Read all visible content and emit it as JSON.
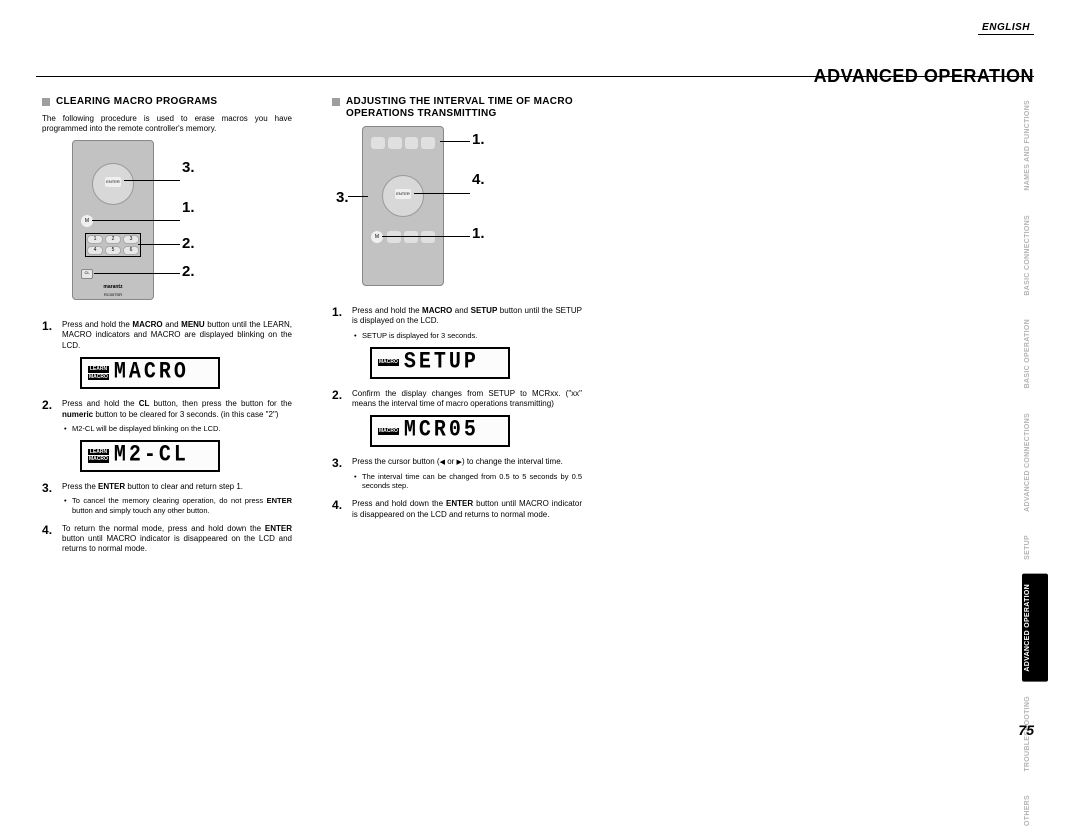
{
  "header": {
    "language": "ENGLISH",
    "title": "ADVANCED OPERATION"
  },
  "section1": {
    "title": "CLEARING MACRO PROGRAMS",
    "intro": "The following procedure is used to erase macros you have programmed into the remote controller's memory.",
    "remote_callouts": [
      "3.",
      "1.",
      "2.",
      "2."
    ],
    "remote_brand": "marantz",
    "remote_model": "RC007SR",
    "lcd1": {
      "indicators": [
        "LEARN",
        "MACRO"
      ],
      "text": "MACRO"
    },
    "lcd2": {
      "indicators": [
        "LEARN",
        "MACRO"
      ],
      "text": "M2-CL"
    },
    "steps": [
      {
        "text_parts": [
          "Press and hold the ",
          "MACRO",
          " and ",
          "MENU",
          " button until the LEARN, MACRO indicators and MACRO are displayed blinking on the LCD."
        ]
      },
      {
        "text_parts": [
          "Press and hold the ",
          "CL",
          " button, then press the button for the ",
          "numeric",
          " button to be cleared for 3 seconds. (in this case \"2\")"
        ],
        "bullets": [
          "M2-CL will be displayed blinking on the LCD."
        ]
      },
      {
        "text_parts": [
          "Press the ",
          "ENTER",
          " button to clear and return step 1."
        ],
        "bullets": [
          "To cancel the memory clearing operation, do not press <b>ENTER</b> button and simply touch any other button."
        ]
      },
      {
        "text_parts": [
          "To return the normal mode, press and hold down the ",
          "ENTER",
          " button until MACRO indicator is disappeared on the LCD and returns to normal mode."
        ]
      }
    ]
  },
  "section2": {
    "title": "ADJUSTING THE INTERVAL TIME OF MACRO OPERATIONS TRANSMITTING",
    "remote_callouts": [
      "1.",
      "4.",
      "3.",
      "1."
    ],
    "lcd1": {
      "indicators": [
        "MACRO"
      ],
      "text": "SETUP"
    },
    "lcd2": {
      "indicators": [
        "MACRO"
      ],
      "text": "MCR05"
    },
    "steps": [
      {
        "text_parts": [
          "Press and hold the ",
          "MACRO",
          " and ",
          "SETUP",
          " button until the SETUP is displayed on the LCD."
        ],
        "bullets": [
          "SETUP is displayed for 3 seconds."
        ]
      },
      {
        "text_parts": [
          "Confirm the display changes from SETUP to MCRxx. (\"xx\" means the interval time of macro operations transmitting)"
        ]
      },
      {
        "text_parts": [
          "Press the cursor button (◀ or ▶) to change the interval time."
        ],
        "bullets": [
          "The interval time can be changed from 0.5 to 5 seconds by 0.5 seconds step."
        ]
      },
      {
        "text_parts": [
          "Press and hold down the ",
          "ENTER",
          " button until MACRO indicator is disappeared on the LCD and returns to normal mode."
        ]
      }
    ]
  },
  "side_tabs": [
    {
      "label": "NAMES AND\nFUNCTIONS",
      "active": false
    },
    {
      "label": "BASIC\nCONNECTIONS",
      "active": false
    },
    {
      "label": "BASIC\nOPERATION",
      "active": false
    },
    {
      "label": "ADVANCED\nCONNECTIONS",
      "active": false
    },
    {
      "label": "SETUP",
      "active": false
    },
    {
      "label": "ADVANCED\nOPERATION",
      "active": true
    },
    {
      "label": "TROUBLESHOOTING",
      "active": false
    },
    {
      "label": "OTHERS",
      "active": false
    }
  ],
  "page_number": "75",
  "colors": {
    "tab_inactive": "#b5b5b5",
    "tab_active_bg": "#000000",
    "remote_body": "#c2c2c2",
    "square_marker": "#9e9e9e"
  }
}
